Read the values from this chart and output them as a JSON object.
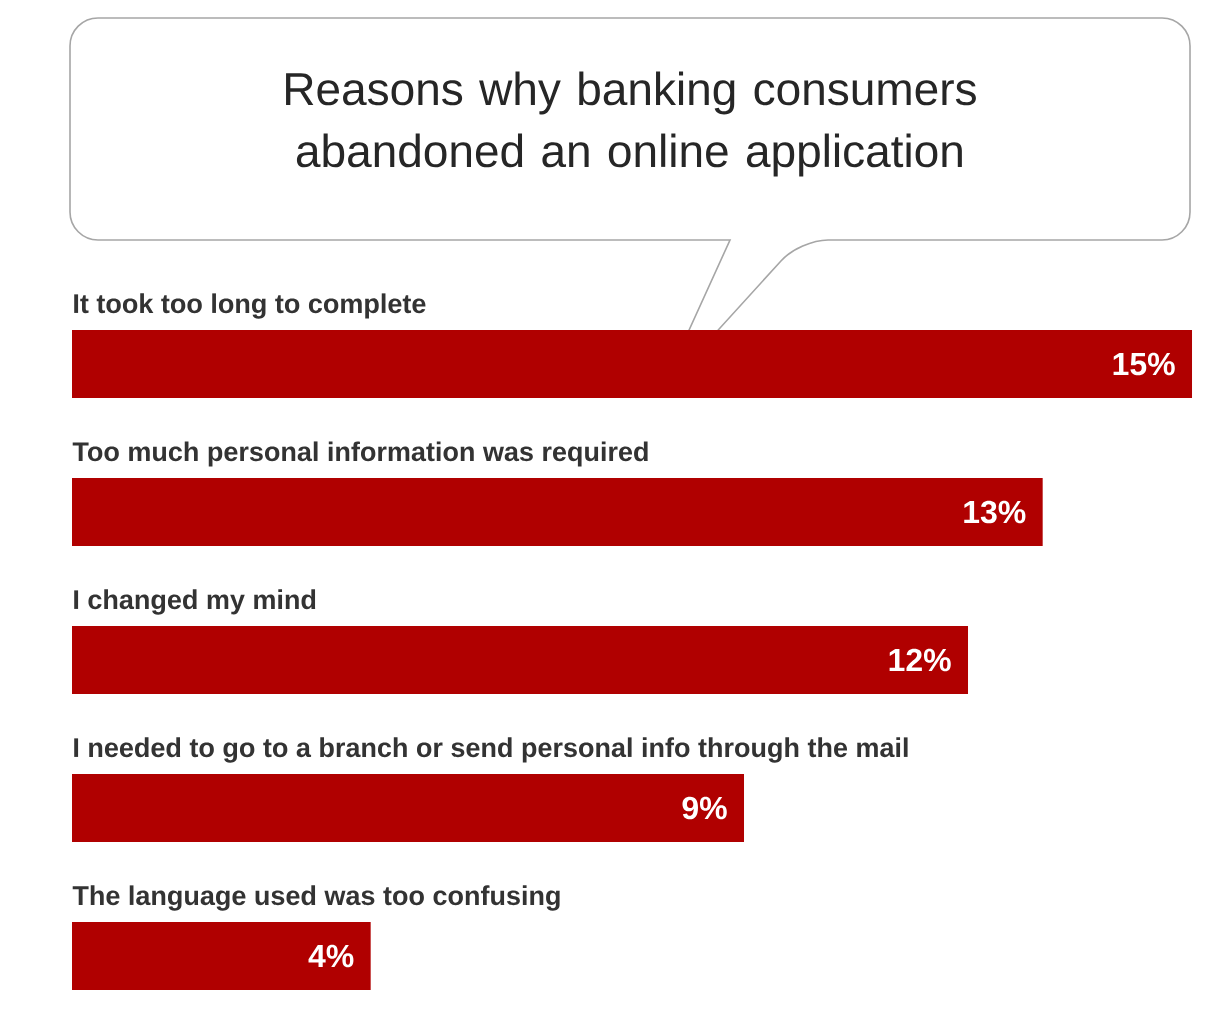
{
  "chart_data": {
    "type": "bar",
    "orientation": "horizontal",
    "title": "Reasons why banking consumers abandoned an online application",
    "categories": [
      "It took too long to complete",
      "Too much personal information was required",
      "I changed my mind",
      "I needed to go to a branch or send personal info through the mail",
      "The language used was too confusing"
    ],
    "values": [
      15,
      13,
      12,
      9,
      4
    ],
    "value_labels": [
      "15%",
      "13%",
      "12%",
      "9%",
      "4%"
    ],
    "color": "#b00000"
  }
}
